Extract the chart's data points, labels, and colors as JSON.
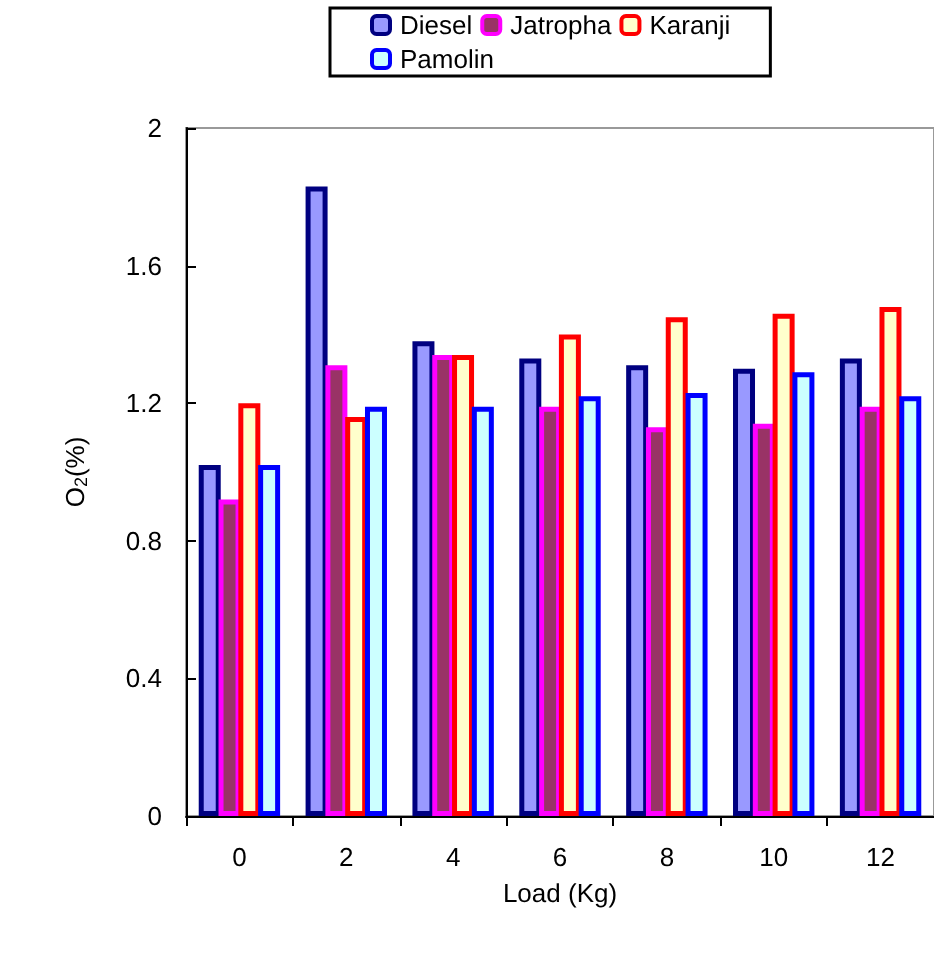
{
  "chart_data": {
    "type": "bar",
    "xlabel": "Load (Kg)",
    "ylabel": "O$_{2}$(%)",
    "categories": [
      "0",
      "2",
      "4",
      "6",
      "8",
      "10",
      "12"
    ],
    "series": [
      {
        "name": "Diesel",
        "color": "#9999ff",
        "values": [
          1.02,
          1.83,
          1.38,
          1.33,
          1.31,
          1.3,
          1.33
        ]
      },
      {
        "name": "Jatropha",
        "color": "#993366",
        "values": [
          0.92,
          1.31,
          1.34,
          1.19,
          1.13,
          1.14,
          1.19
        ]
      },
      {
        "name": "Karanji",
        "color": "#ffffcc",
        "values": [
          1.2,
          1.16,
          1.34,
          1.4,
          1.45,
          1.46,
          1.48
        ]
      },
      {
        "name": "Pamolin",
        "color": "#ccffff",
        "values": [
          1.02,
          1.19,
          1.19,
          1.22,
          1.23,
          1.29,
          1.22
        ]
      }
    ],
    "ylim": [
      0,
      2
    ],
    "yticks": [
      0,
      0.4,
      0.8,
      1.2,
      1.6,
      2
    ],
    "grid": false,
    "legend": "top"
  }
}
